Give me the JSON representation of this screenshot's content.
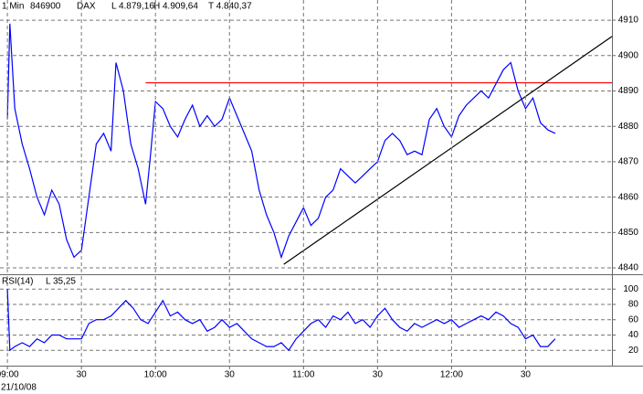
{
  "chart_data": [
    {
      "type": "line",
      "header": [
        "1 Min",
        "846900",
        "DAX",
        "L  4.879,16",
        "H  4.909,64",
        "T  4.840,37"
      ],
      "x": [
        0,
        1,
        3,
        6,
        9,
        12,
        15,
        18,
        21,
        24,
        27,
        30,
        33,
        36,
        39,
        42,
        44,
        47,
        50,
        53,
        56,
        58,
        60,
        63,
        66,
        69,
        72,
        75,
        78,
        81,
        84,
        87,
        90,
        93,
        96,
        99,
        102,
        105,
        108,
        111,
        114,
        117,
        120,
        123,
        126,
        129,
        132,
        135,
        138,
        141,
        144,
        147,
        150,
        153,
        156,
        159,
        162,
        165,
        168,
        171,
        174,
        177,
        180,
        183,
        186,
        189,
        192,
        195,
        198,
        201,
        204,
        207,
        210,
        213,
        216,
        219,
        222
      ],
      "series": [
        {
          "color": "#0000ff",
          "values": [
            4882,
            4909,
            4885,
            4875,
            4868,
            4860,
            4855,
            4862,
            4858,
            4848,
            4843,
            4845,
            4860,
            4875,
            4878,
            4873,
            4898,
            4890,
            4875,
            4868,
            4858,
            4872,
            4887,
            4885,
            4880,
            4877,
            4882,
            4886,
            4880,
            4883,
            4880,
            4882,
            4888,
            4883,
            4878,
            4873,
            4862,
            4855,
            4850,
            4843,
            4849,
            4853,
            4857,
            4852,
            4854,
            4860,
            4862,
            4868,
            4866,
            4864,
            4866,
            4868,
            4870,
            4876,
            4878,
            4876,
            4872,
            4873,
            4872,
            4882,
            4885,
            4880,
            4877,
            4883,
            4886,
            4888,
            4890,
            4888,
            4892,
            4896,
            4898,
            4890,
            4885,
            4888,
            4881,
            4879,
            4878
          ]
        }
      ],
      "lines": [
        {
          "color": "#ff0000",
          "x": [
            56,
            245
          ],
          "y": [
            4892.3,
            4892.3
          ]
        },
        {
          "color": "#000000",
          "x": [
            112,
            245
          ],
          "y": [
            4841,
            4905.4
          ]
        }
      ],
      "xlim": [
        -3,
        245
      ],
      "ylim": [
        4838.2,
        4915.7
      ],
      "yticks": [
        4840,
        4850,
        4860,
        4870,
        4880,
        4890,
        4900,
        4910
      ],
      "grid": true
    },
    {
      "type": "line",
      "header": [
        "RSI(14)",
        "L  35,25"
      ],
      "x": [
        0,
        1,
        3,
        6,
        9,
        12,
        15,
        18,
        21,
        24,
        27,
        30,
        33,
        36,
        39,
        42,
        45,
        48,
        51,
        54,
        57,
        60,
        63,
        66,
        69,
        72,
        75,
        78,
        81,
        84,
        87,
        90,
        93,
        96,
        99,
        102,
        105,
        108,
        111,
        114,
        117,
        120,
        123,
        126,
        129,
        132,
        135,
        138,
        141,
        144,
        147,
        150,
        153,
        156,
        159,
        162,
        165,
        168,
        171,
        174,
        177,
        180,
        183,
        186,
        189,
        192,
        195,
        198,
        201,
        204,
        207,
        210,
        213,
        216,
        219,
        222
      ],
      "series": [
        {
          "color": "#0000ff",
          "values": [
            100,
            20,
            25,
            30,
            25,
            35,
            30,
            40,
            40,
            35,
            35,
            35,
            55,
            60,
            60,
            65,
            75,
            85,
            75,
            60,
            55,
            70,
            85,
            65,
            70,
            60,
            55,
            60,
            45,
            50,
            60,
            50,
            55,
            45,
            35,
            30,
            25,
            25,
            30,
            20,
            35,
            45,
            55,
            60,
            50,
            65,
            60,
            70,
            55,
            60,
            50,
            65,
            75,
            60,
            50,
            45,
            55,
            50,
            55,
            60,
            55,
            60,
            50,
            55,
            60,
            65,
            60,
            70,
            65,
            55,
            50,
            35,
            40,
            25,
            25,
            35
          ]
        }
      ],
      "xlim": [
        -3,
        245
      ],
      "ylim": [
        0,
        117
      ],
      "yticks": [
        20,
        40,
        60,
        80,
        100
      ],
      "xticks": [
        {
          "value": 0,
          "label": "09:00"
        },
        {
          "value": 30,
          "label": "30"
        },
        {
          "value": 60,
          "label": "10:00"
        },
        {
          "value": 90,
          "label": "30"
        },
        {
          "value": 120,
          "label": "11:00"
        },
        {
          "value": 150,
          "label": "30"
        },
        {
          "value": 180,
          "label": "12:00"
        },
        {
          "value": 210,
          "label": "30"
        }
      ],
      "date": "21/10/08",
      "grid": true
    }
  ]
}
